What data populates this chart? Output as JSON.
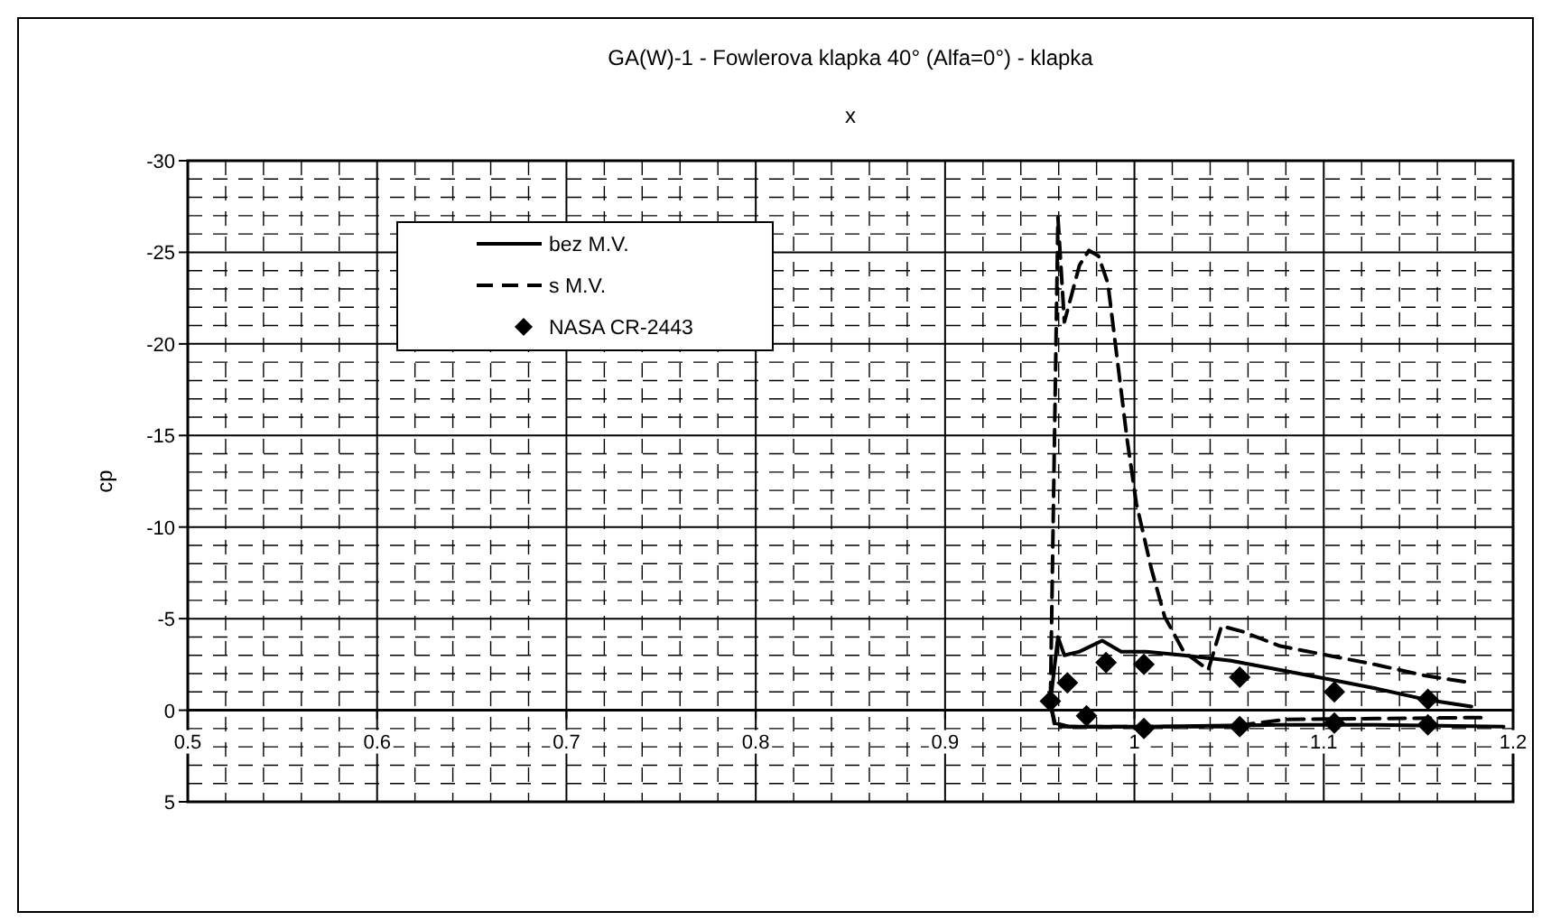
{
  "chart_data": {
    "type": "line",
    "title": "GA(W)-1 - Fowlerova klapka 40° (Alfa=0°) - klapka",
    "xlabel": "x",
    "ylabel": "cp",
    "xlim": [
      0.5,
      1.2
    ],
    "xticks": [
      0.5,
      0.6,
      0.7,
      0.8,
      0.9,
      1,
      1.1,
      1.2
    ],
    "ylim": [
      5,
      -30
    ],
    "yticks": [
      -30,
      -25,
      -20,
      -15,
      -10,
      -5,
      0,
      5
    ],
    "grid": true,
    "legend": "top left",
    "series": [
      {
        "name": "bez M.V.",
        "color": "#000000",
        "line_style": "solid",
        "x": [
          1.195,
          1.127,
          1.077,
          1.0,
          0.966,
          0.958,
          0.9556,
          0.9596,
          0.963,
          0.971,
          0.983,
          0.993,
          1.006,
          1.026,
          1.051,
          1.077,
          1.102,
          1.127,
          1.153,
          1.178
        ],
        "values": [
          0.9,
          0.8,
          0.8,
          0.9,
          0.9,
          0.7,
          -0.4,
          -4.0,
          -3.0,
          -3.2,
          -3.8,
          -3.2,
          -3.2,
          -3.0,
          -2.7,
          -2.2,
          -1.7,
          -1.2,
          -0.6,
          -0.2
        ]
      },
      {
        "name": "s M.V.",
        "color": "#000000",
        "line_style": "dashed",
        "x": [
          1.183,
          1.08,
          1.05,
          1.0,
          0.958,
          0.9556,
          0.9596,
          0.963,
          0.971,
          0.976,
          0.981,
          0.986,
          0.991,
          0.996,
          1.001,
          1.009,
          1.016,
          1.026,
          1.039,
          1.046,
          1.057,
          1.077,
          1.102,
          1.127,
          1.153,
          1.178
        ],
        "values": [
          0.4,
          0.5,
          0.9,
          0.9,
          0.9,
          -0.4,
          -26.9,
          -21.2,
          -24.3,
          -25.1,
          -24.8,
          -23.3,
          -19.1,
          -14.9,
          -11.3,
          -7.7,
          -5.1,
          -3.2,
          -2.2,
          -4.6,
          -4.3,
          -3.5,
          -3.0,
          -2.5,
          -1.9,
          -1.5
        ]
      },
      {
        "name": "NASA CR-2443",
        "color": "#000000",
        "type": "scatter",
        "marker": "diamond",
        "x": [
          0.9556,
          0.9646,
          0.9747,
          0.985,
          1.005,
          1.005,
          1.0556,
          1.0556,
          1.1056,
          1.1056,
          1.155,
          1.155
        ],
        "values": [
          -0.5,
          -1.5,
          0.3,
          -2.6,
          -2.5,
          1.0,
          -1.8,
          0.9,
          -1.0,
          0.7,
          -0.6,
          0.8
        ]
      }
    ]
  }
}
